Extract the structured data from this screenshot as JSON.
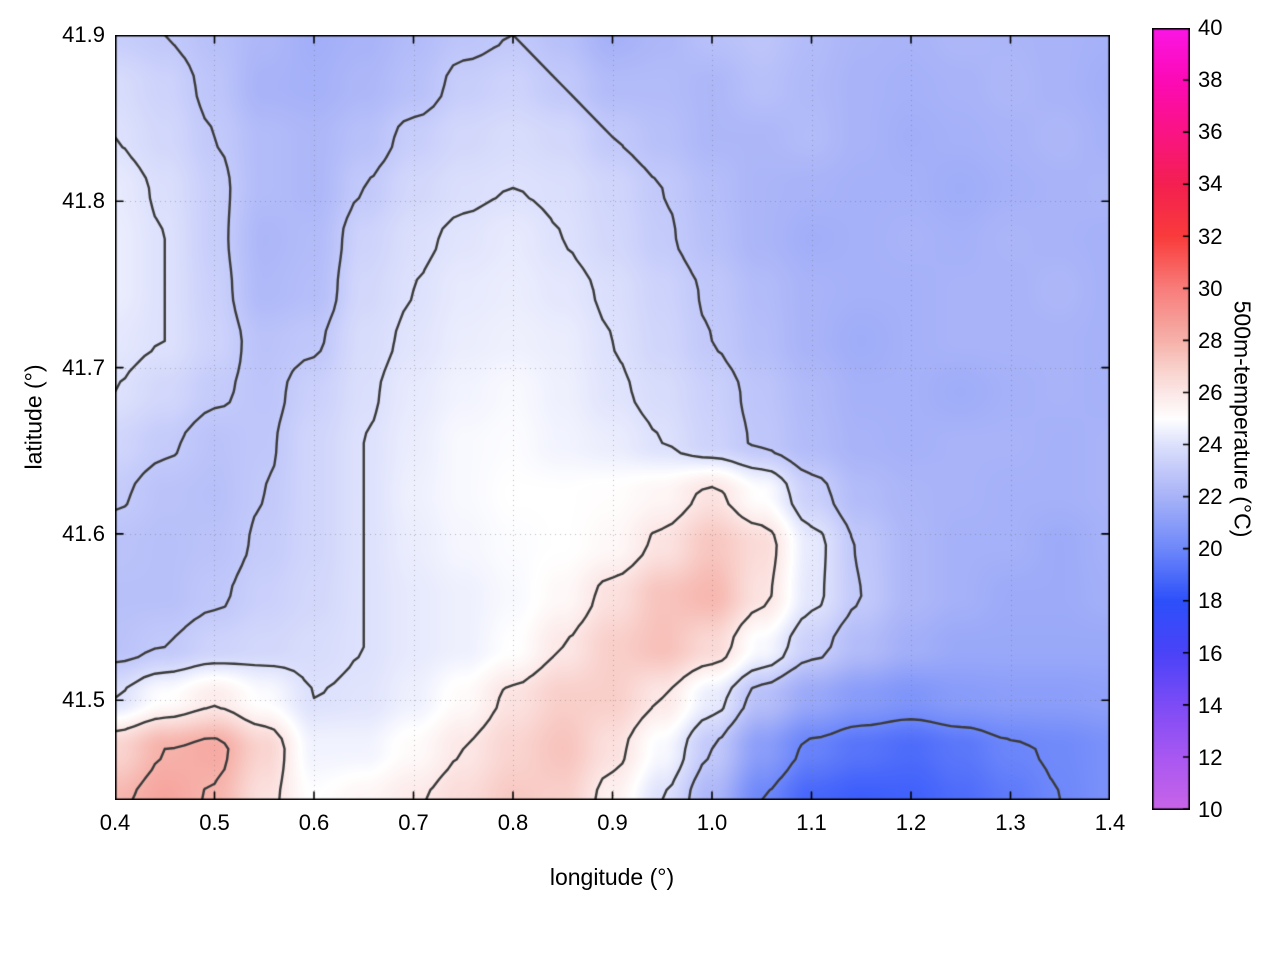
{
  "figure": {
    "background": "#ffffff",
    "frame_color": "#000000"
  },
  "chart_data": {
    "type": "heatmap",
    "title": "",
    "xlabel": "longitude (°)",
    "ylabel": "latitude (°)",
    "colorbar_label": "500m-temperature (°C)",
    "xlim": [
      0.4,
      1.4
    ],
    "ylim": [
      41.44,
      41.9
    ],
    "clim": [
      10,
      40
    ],
    "grid_on": true,
    "x_ticks": [
      {
        "value": 0.4,
        "label": "0.4"
      },
      {
        "value": 0.5,
        "label": "0.5"
      },
      {
        "value": 0.6,
        "label": "0.6"
      },
      {
        "value": 0.7,
        "label": "0.7"
      },
      {
        "value": 0.8,
        "label": "0.8"
      },
      {
        "value": 0.9,
        "label": "0.9"
      },
      {
        "value": 1.0,
        "label": "1.0"
      },
      {
        "value": 1.1,
        "label": "1.1"
      },
      {
        "value": 1.2,
        "label": "1.2"
      },
      {
        "value": 1.3,
        "label": "1.3"
      },
      {
        "value": 1.4,
        "label": "1.4"
      }
    ],
    "y_ticks": [
      {
        "value": 41.5,
        "label": "41.5"
      },
      {
        "value": 41.6,
        "label": "41.6"
      },
      {
        "value": 41.7,
        "label": "41.7"
      },
      {
        "value": 41.8,
        "label": "41.8"
      },
      {
        "value": 41.9,
        "label": "41.9"
      }
    ],
    "cb_ticks": [
      {
        "value": 10,
        "label": "10"
      },
      {
        "value": 12,
        "label": "12"
      },
      {
        "value": 14,
        "label": "14"
      },
      {
        "value": 16,
        "label": "16"
      },
      {
        "value": 18,
        "label": "18"
      },
      {
        "value": 20,
        "label": "20"
      },
      {
        "value": 22,
        "label": "22"
      },
      {
        "value": 24,
        "label": "24"
      },
      {
        "value": 26,
        "label": "26"
      },
      {
        "value": 28,
        "label": "28"
      },
      {
        "value": 30,
        "label": "30"
      },
      {
        "value": 32,
        "label": "32"
      },
      {
        "value": 34,
        "label": "34"
      },
      {
        "value": 36,
        "label": "36"
      },
      {
        "value": 38,
        "label": "38"
      },
      {
        "value": 40,
        "label": "40"
      }
    ],
    "palette": [
      [
        10,
        "#c964e8"
      ],
      [
        12,
        "#a958f2"
      ],
      [
        14,
        "#7e4cf6"
      ],
      [
        16,
        "#4b43f8"
      ],
      [
        18,
        "#2d50fb"
      ],
      [
        20,
        "#6e88fa"
      ],
      [
        22,
        "#a8b3f8"
      ],
      [
        23,
        "#c2c9fa"
      ],
      [
        24,
        "#dde1fc"
      ],
      [
        25,
        "#ffffff"
      ],
      [
        26,
        "#fce8e7"
      ],
      [
        27,
        "#f9cfca"
      ],
      [
        28,
        "#f6b2aa"
      ],
      [
        30,
        "#f87e7b"
      ],
      [
        32,
        "#fa3c3c"
      ],
      [
        34,
        "#f42050"
      ],
      [
        36,
        "#fa1484"
      ],
      [
        38,
        "#fd0ab6"
      ],
      [
        40,
        "#fb16e6"
      ]
    ],
    "contour": {
      "levels": [
        20,
        23,
        24,
        26,
        28
      ],
      "color": "#3a3a3a",
      "width": 2.4
    },
    "heatmap": {
      "lon": {
        "start": 0.4,
        "end": 1.4,
        "cols": 21
      },
      "lat": {
        "start": 41.9,
        "end": 41.44,
        "rows": 16
      },
      "units": "°C",
      "values": [
        [
          23.2,
          23.0,
          22.6,
          22.2,
          21.8,
          22.0,
          22.4,
          22.8,
          23.0,
          22.6,
          21.9,
          22.2,
          22.6,
          22.8,
          22.4,
          22.1,
          22.0,
          22.2,
          22.1,
          22.0,
          21.9
        ],
        [
          23.8,
          23.4,
          22.8,
          22.0,
          21.9,
          22.2,
          22.6,
          23.2,
          23.4,
          23.0,
          22.4,
          22.4,
          22.2,
          22.6,
          22.3,
          22.0,
          21.9,
          22.0,
          22.2,
          22.0,
          21.8
        ],
        [
          24.0,
          23.6,
          23.0,
          22.4,
          22.2,
          22.6,
          23.2,
          23.6,
          23.8,
          23.6,
          23.0,
          22.6,
          22.2,
          22.2,
          22.4,
          22.0,
          21.8,
          21.9,
          22.0,
          22.2,
          21.9
        ],
        [
          24.3,
          23.9,
          23.2,
          22.4,
          22.2,
          23.0,
          23.6,
          23.9,
          24.0,
          23.9,
          23.5,
          23.0,
          22.5,
          22.1,
          22.0,
          21.9,
          21.9,
          21.7,
          21.9,
          22.0,
          22.1
        ],
        [
          24.4,
          24.0,
          23.2,
          22.2,
          22.4,
          23.4,
          23.9,
          24.1,
          24.3,
          24.0,
          23.6,
          23.1,
          22.6,
          22.1,
          21.8,
          21.9,
          22.0,
          21.9,
          22.1,
          22.0,
          21.9
        ],
        [
          24.4,
          24.0,
          23.3,
          22.3,
          22.5,
          23.6,
          24.0,
          24.3,
          24.4,
          24.2,
          23.9,
          23.4,
          22.9,
          22.4,
          22.0,
          21.9,
          21.9,
          22.0,
          22.0,
          22.2,
          21.9
        ],
        [
          24.2,
          24.0,
          23.4,
          22.7,
          22.9,
          23.8,
          24.1,
          24.4,
          24.5,
          24.4,
          24.0,
          23.5,
          23.0,
          22.5,
          22.0,
          21.7,
          21.9,
          22.0,
          22.0,
          22.0,
          21.9
        ],
        [
          24.0,
          23.6,
          23.1,
          22.8,
          23.3,
          23.9,
          24.3,
          24.6,
          24.8,
          24.5,
          24.1,
          23.8,
          23.3,
          22.8,
          22.3,
          21.9,
          21.9,
          21.7,
          21.9,
          22.0,
          21.9
        ],
        [
          23.5,
          23.1,
          22.7,
          22.9,
          23.5,
          24.0,
          24.4,
          24.8,
          24.9,
          24.6,
          24.4,
          24.0,
          23.4,
          22.9,
          22.4,
          22.0,
          21.9,
          22.0,
          22.0,
          21.9,
          22.0
        ],
        [
          23.1,
          22.7,
          22.6,
          23.0,
          23.5,
          24.0,
          24.5,
          24.8,
          25.0,
          25.0,
          25.1,
          25.4,
          26.2,
          25.0,
          23.3,
          22.4,
          22.1,
          22.0,
          21.9,
          21.9,
          22.0
        ],
        [
          22.7,
          22.6,
          22.7,
          23.1,
          23.5,
          24.0,
          24.4,
          24.7,
          24.9,
          25.0,
          25.3,
          26.2,
          27.3,
          26.5,
          24.3,
          22.9,
          22.2,
          21.9,
          21.9,
          21.6,
          21.9
        ],
        [
          22.6,
          22.6,
          22.9,
          23.3,
          23.6,
          24.0,
          24.3,
          24.5,
          24.8,
          25.3,
          26.3,
          27.4,
          27.8,
          26.2,
          24.2,
          23.0,
          22.2,
          21.9,
          21.6,
          21.6,
          21.8
        ],
        [
          22.7,
          23.0,
          23.4,
          23.6,
          23.8,
          24.0,
          24.3,
          24.5,
          25.0,
          26.0,
          27.0,
          27.5,
          26.6,
          24.8,
          23.3,
          22.4,
          21.8,
          21.5,
          21.5,
          21.5,
          21.5
        ],
        [
          24.0,
          25.0,
          25.8,
          24.9,
          24.0,
          24.1,
          24.5,
          25.2,
          26.2,
          27.0,
          27.0,
          26.0,
          24.4,
          22.6,
          21.5,
          20.9,
          20.6,
          20.9,
          21.0,
          21.0,
          21.1
        ],
        [
          26.8,
          28.0,
          28.3,
          26.8,
          24.6,
          24.6,
          25.2,
          26.0,
          26.8,
          27.4,
          26.3,
          24.8,
          23.0,
          21.0,
          19.8,
          19.3,
          19.0,
          19.4,
          19.9,
          20.1,
          20.4
        ],
        [
          27.8,
          28.5,
          27.9,
          26.3,
          25.0,
          25.4,
          25.9,
          26.5,
          27.2,
          27.0,
          25.6,
          24.0,
          22.2,
          20.0,
          18.8,
          18.5,
          18.6,
          19.0,
          19.5,
          20.0,
          20.4
        ]
      ]
    }
  }
}
